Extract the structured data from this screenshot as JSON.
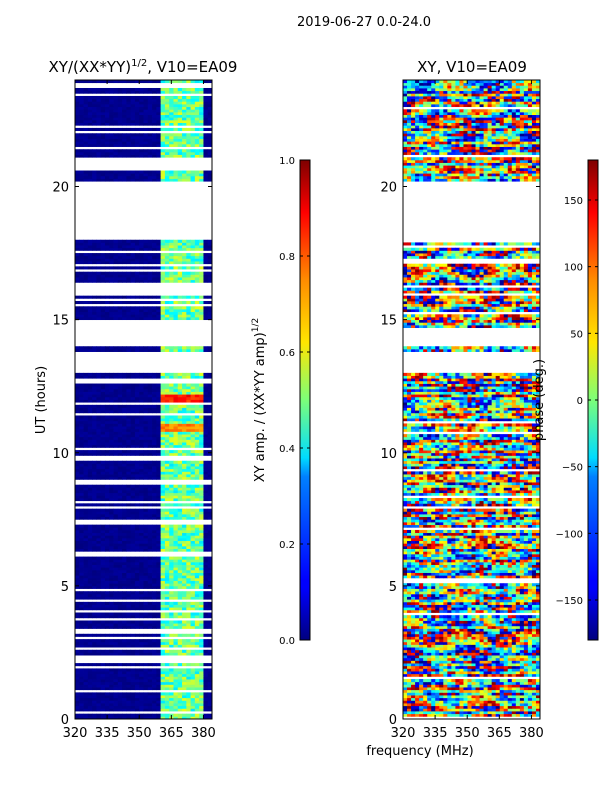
{
  "figure": {
    "suptitle": "2019-06-27 0.0-24.0",
    "shared_xlabel": "frequency (MHz)"
  },
  "chart_data": [
    {
      "type": "heatmap",
      "title": "XY/(XX*YY)",
      "title_superscript": "1/2",
      "title_suffix": ", V10=EA09",
      "ylabel": "UT (hours)",
      "xlim": [
        320,
        384
      ],
      "ylim": [
        0,
        24
      ],
      "x_ticks": [
        320,
        335,
        350,
        365,
        380
      ],
      "y_ticks": [
        0,
        5,
        10,
        15,
        20
      ],
      "colorbar": {
        "label": "XY amp. / (XX*YY amp)",
        "label_superscript": "1/2",
        "vmin": 0.0,
        "vmax": 1.0,
        "ticks": [
          "0.0",
          "0.2",
          "0.4",
          "0.6",
          "0.8",
          "1.0"
        ],
        "tick_values": [
          0.0,
          0.2,
          0.4,
          0.6,
          0.8,
          1.0
        ]
      },
      "low_value": 0.0,
      "active_band_mhz": [
        360,
        380
      ],
      "flagged_ut_intervals": [
        [
          19.5,
          20.2
        ],
        [
          18.0,
          19.5
        ],
        [
          13.0,
          13.8
        ],
        [
          14.0,
          14.7
        ],
        [
          20.8,
          21.0
        ],
        [
          16.0,
          16.3
        ]
      ],
      "hot_spots": [
        {
          "ut": 12.0,
          "value": 0.85
        },
        {
          "ut": 10.9,
          "value": 0.75
        }
      ]
    },
    {
      "type": "heatmap",
      "title": "XY, V10=EA09",
      "xlim": [
        320,
        384
      ],
      "ylim": [
        0,
        24
      ],
      "x_ticks": [
        320,
        335,
        350,
        365,
        380
      ],
      "y_ticks": [
        0,
        5,
        10,
        15,
        20
      ],
      "colorbar": {
        "label": "phase (deg.)",
        "vmin": -180,
        "vmax": 180,
        "ticks": [
          "−150",
          "−100",
          "−50",
          "0",
          "50",
          "100",
          "150"
        ],
        "tick_values": [
          -150,
          -100,
          -50,
          0,
          50,
          100,
          150
        ]
      },
      "flagged_ut_intervals": [
        [
          19.5,
          20.2
        ],
        [
          18.0,
          19.5
        ],
        [
          13.0,
          13.8
        ],
        [
          14.0,
          14.7
        ]
      ]
    }
  ]
}
